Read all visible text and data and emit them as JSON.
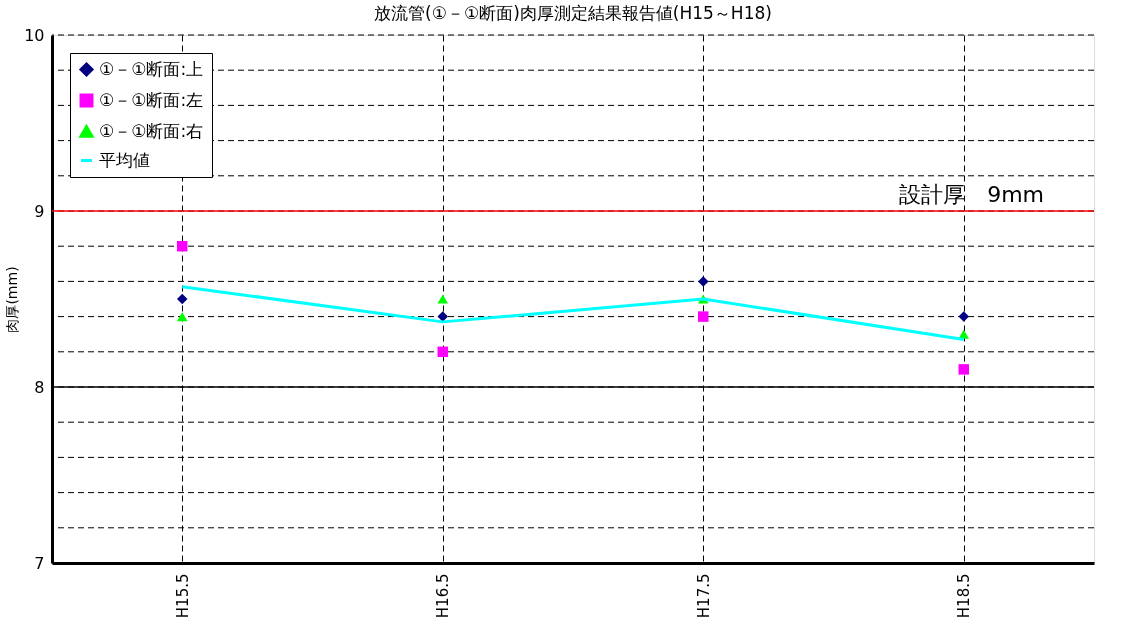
{
  "chart_data": {
    "type": "scatter",
    "title": "放流管(①－①断面)肉厚測定結果報告値(H15～H18)",
    "ylabel": "肉厚(mm)",
    "categories": [
      "H15.5",
      "H16.5",
      "H17.5",
      "H18.5"
    ],
    "series": [
      {
        "name": "①－①断面:上",
        "color": "#000080",
        "marker": "diamond",
        "values": [
          8.5,
          8.4,
          8.6,
          8.4
        ]
      },
      {
        "name": "①－①断面:左",
        "color": "#ff00ff",
        "marker": "square",
        "values": [
          8.8,
          8.2,
          8.4,
          8.1
        ]
      },
      {
        "name": "①－①断面:右",
        "color": "#00ff00",
        "marker": "triangle",
        "values": [
          8.4,
          8.5,
          8.5,
          8.3
        ]
      },
      {
        "name": "平均値",
        "color": "#00ffff",
        "type": "line",
        "marker": "none",
        "values": [
          8.57,
          8.37,
          8.5,
          8.27
        ]
      }
    ],
    "ylim": [
      7,
      10
    ],
    "yticks": [
      7,
      {
        "value": 7.2,
        "label": null
      },
      {
        "value": 7.4,
        "label": null
      },
      {
        "value": 7.6,
        "label": null
      },
      {
        "value": 7.8,
        "label": null
      },
      8,
      {
        "value": 8.2,
        "label": null
      },
      {
        "value": 8.4,
        "label": null
      },
      {
        "value": 8.6,
        "label": null
      },
      {
        "value": 8.8,
        "label": null
      },
      9,
      {
        "value": 9.2,
        "label": null
      },
      {
        "value": 9.4,
        "label": null
      },
      {
        "value": 9.6,
        "label": null
      },
      {
        "value": 9.8,
        "label": null
      },
      10
    ],
    "ref_lines": [
      {
        "axis": "y",
        "value": 9,
        "label": "設計厚　9mm",
        "color": "#ff0000"
      },
      {
        "axis": "y",
        "value": 8,
        "color": "#000000"
      }
    ],
    "grid": true,
    "legend": "top left"
  }
}
